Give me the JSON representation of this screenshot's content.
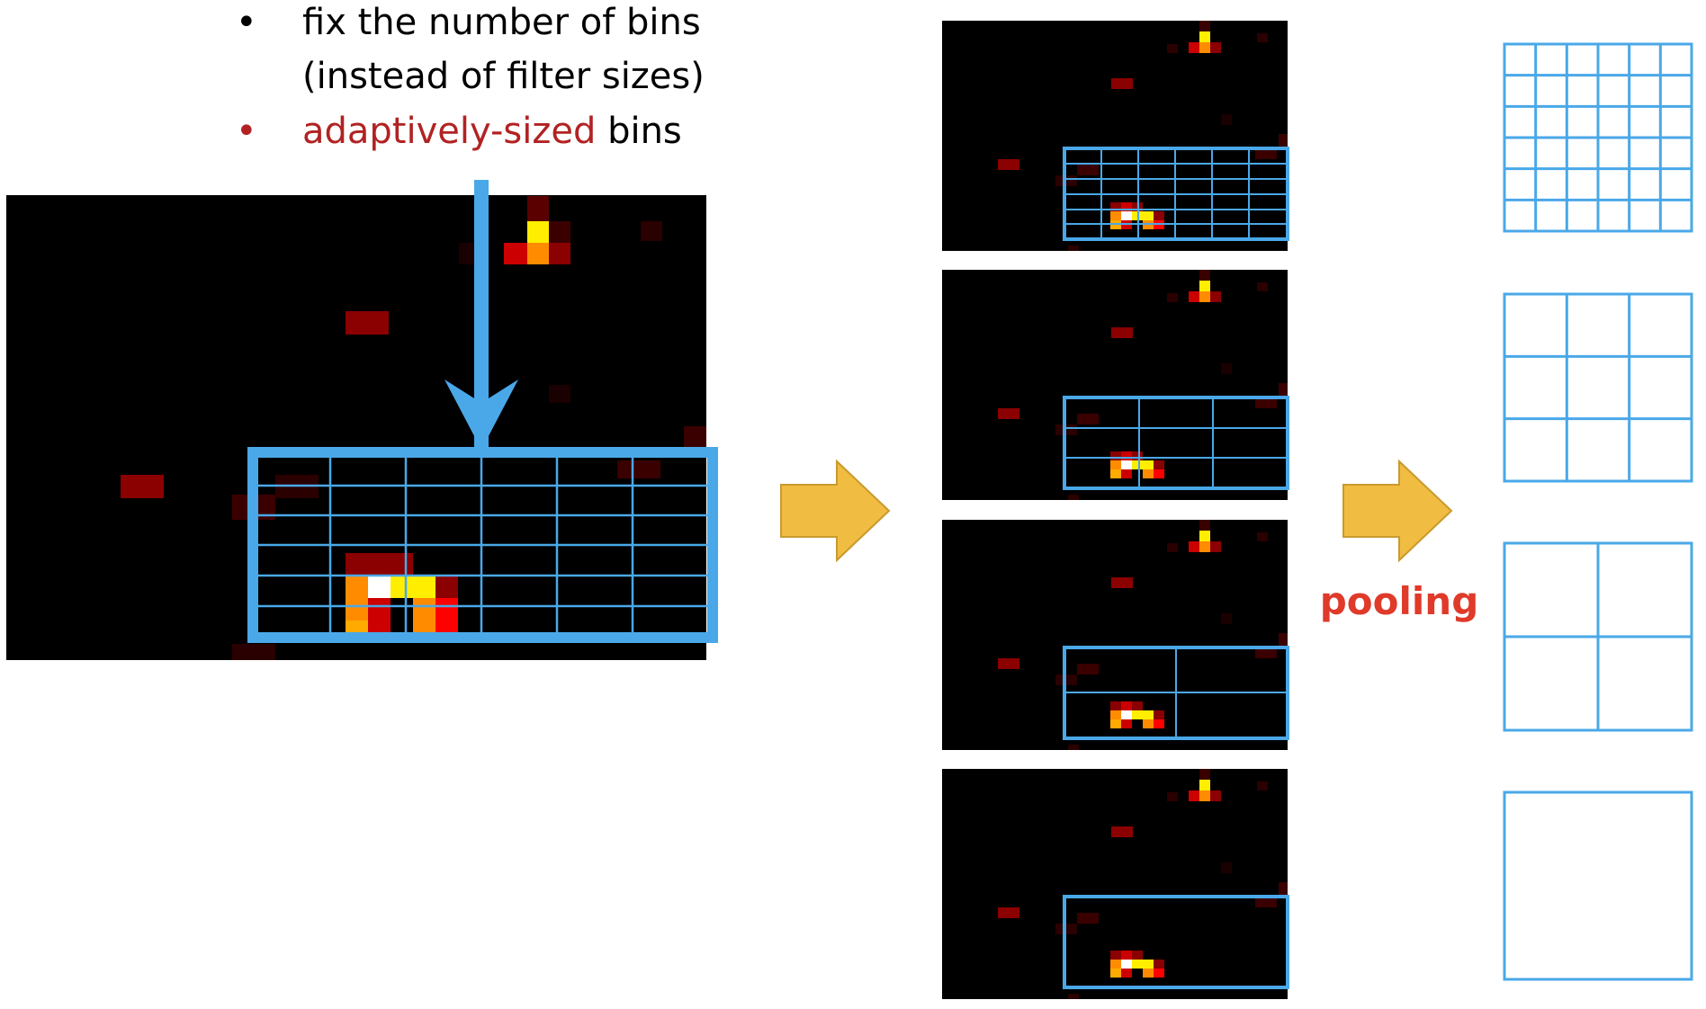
{
  "bullets": [
    {
      "marker": "•",
      "lines": [
        "fix the number of bins",
        "(instead of filter sizes)"
      ],
      "color": "#000000"
    },
    {
      "marker": "•",
      "highlight": "adaptively-sized",
      "rest": " bins",
      "highlight_color": "#b22222",
      "marker_color": "#b22222"
    }
  ],
  "pooling_label": "pooling",
  "colors": {
    "grid_blue": "#4aa8e8",
    "arrow_blue": "#4aa8e8",
    "arrow_gold": "#f0bc42",
    "arrow_gold_border": "#c99a2e",
    "pooling_red": "#e03a2a",
    "heatmap_bg": "#000000"
  },
  "bin_grids": [
    {
      "name": "6x6",
      "cols": 6,
      "rows": 6
    },
    {
      "name": "3x3",
      "cols": 3,
      "rows": 3
    },
    {
      "name": "2x2",
      "cols": 2,
      "rows": 2
    },
    {
      "name": "1x1",
      "cols": 1,
      "rows": 1
    }
  ],
  "icons": [
    "down-arrow-icon",
    "right-arrow-icon",
    "right-arrow-icon"
  ]
}
